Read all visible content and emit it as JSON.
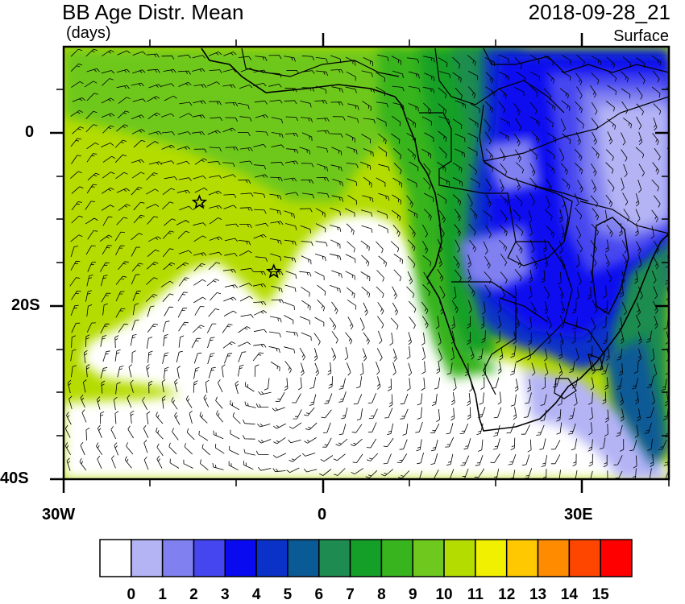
{
  "header": {
    "title": "BB Age Distr. Mean",
    "units": "(days)",
    "datetime": "2018-09-28_21",
    "level": "Surface"
  },
  "axes": {
    "y_labels": [
      "0",
      "20S",
      "40S"
    ],
    "x_labels": [
      "30W",
      "0",
      "30E"
    ]
  },
  "colorbar": {
    "labels": [
      "0",
      "1",
      "2",
      "3",
      "4",
      "5",
      "6",
      "7",
      "8",
      "9",
      "10",
      "11",
      "12",
      "13",
      "14",
      "15"
    ],
    "colors": [
      "#ffffff",
      "#b4b4f5",
      "#8080f0",
      "#4646f0",
      "#0a0af0",
      "#0a32c8",
      "#0a5a96",
      "#1e8c50",
      "#14a028",
      "#37b41e",
      "#6ec81e",
      "#b4dc00",
      "#f0f000",
      "#ffc800",
      "#ff8c00",
      "#ff4600",
      "#ff0000"
    ]
  },
  "markers": {
    "stars": [
      {
        "lon": -14.3,
        "lat": -8.0
      },
      {
        "lon": -5.7,
        "lat": -16.0
      }
    ]
  }
}
